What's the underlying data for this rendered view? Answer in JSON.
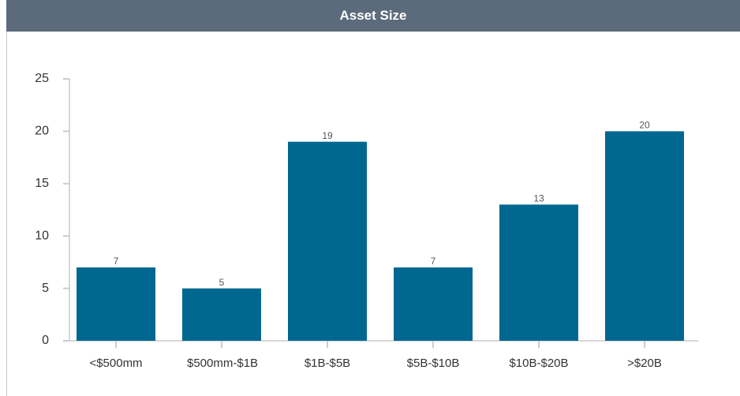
{
  "chart_data": {
    "type": "bar",
    "title": "Asset Size",
    "categories": [
      "<$500mm",
      "$500mm-$1B",
      "$1B-$5B",
      "$5B-$10B",
      "$10B-$20B",
      ">$20B"
    ],
    "values": [
      7,
      5,
      19,
      7,
      13,
      20
    ],
    "color": "#006890",
    "ylim": [
      0,
      25
    ],
    "yticks": [
      0,
      5,
      10,
      15,
      20,
      25
    ],
    "grid": false
  }
}
